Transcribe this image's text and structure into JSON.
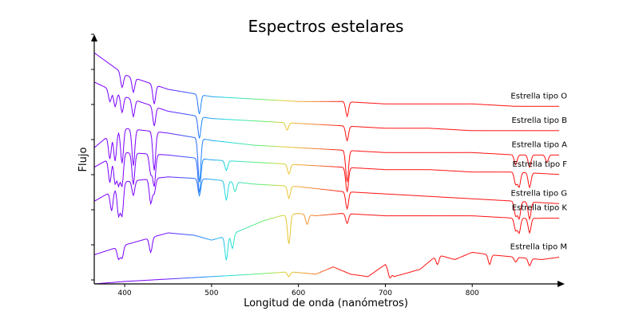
{
  "chart_data": {
    "type": "line",
    "title": "Espectros estelares",
    "xlabel": "Longitud de onda (nanómetros)",
    "ylabel": "Flujo",
    "xlim": [
      365,
      900
    ],
    "x_ticks": [
      400,
      500,
      600,
      700,
      800
    ],
    "y_ticks_count": 8,
    "grid": false,
    "legend": "none",
    "color_scheme": "rainbow-by-wavelength",
    "colors": {
      "violet": "#7a00ff",
      "blue": "#1f77ff",
      "cyan": "#22dddd",
      "green": "#66ee66",
      "yellow": "#e8d030",
      "orange": "#f08030",
      "red": "#ff1010"
    },
    "series": [
      {
        "name": "Estrella tipo O",
        "points": [
          [
            365,
            0.95
          ],
          [
            400,
            0.86
          ],
          [
            450,
            0.8
          ],
          [
            500,
            0.77
          ],
          [
            550,
            0.76
          ],
          [
            600,
            0.75
          ],
          [
            650,
            0.75
          ],
          [
            700,
            0.74
          ],
          [
            750,
            0.74
          ],
          [
            800,
            0.74
          ],
          [
            850,
            0.73
          ],
          [
            900,
            0.73
          ]
        ],
        "absorption_lines": [
          [
            397,
            0.06
          ],
          [
            410,
            0.06
          ],
          [
            434,
            0.08
          ],
          [
            486,
            0.08
          ],
          [
            656,
            0.06
          ]
        ]
      },
      {
        "name": "Estrella tipo B",
        "points": [
          [
            365,
            0.83
          ],
          [
            400,
            0.77
          ],
          [
            450,
            0.71
          ],
          [
            500,
            0.68
          ],
          [
            550,
            0.67
          ],
          [
            600,
            0.66
          ],
          [
            650,
            0.65
          ],
          [
            700,
            0.64
          ],
          [
            750,
            0.64
          ],
          [
            800,
            0.63
          ],
          [
            850,
            0.63
          ],
          [
            900,
            0.63
          ]
        ],
        "absorption_lines": [
          [
            383,
            0.05
          ],
          [
            389,
            0.06
          ],
          [
            397,
            0.07
          ],
          [
            410,
            0.07
          ],
          [
            434,
            0.08
          ],
          [
            486,
            0.09
          ],
          [
            587,
            0.03
          ],
          [
            656,
            0.06
          ]
        ]
      },
      {
        "name": "Estrella tipo A",
        "points": [
          [
            365,
            0.56
          ],
          [
            385,
            0.62
          ],
          [
            400,
            0.64
          ],
          [
            450,
            0.62
          ],
          [
            500,
            0.59
          ],
          [
            550,
            0.57
          ],
          [
            600,
            0.56
          ],
          [
            650,
            0.55
          ],
          [
            700,
            0.54
          ],
          [
            750,
            0.54
          ],
          [
            800,
            0.54
          ],
          [
            850,
            0.53
          ],
          [
            900,
            0.53
          ]
        ],
        "absorption_lines": [
          [
            383,
            0.1
          ],
          [
            389,
            0.12
          ],
          [
            397,
            0.14
          ],
          [
            410,
            0.15
          ],
          [
            434,
            0.16
          ],
          [
            486,
            0.18
          ],
          [
            656,
            0.13
          ],
          [
            866,
            0.05
          ],
          [
            850,
            0.04
          ],
          [
            886,
            0.03
          ]
        ]
      },
      {
        "name": "Estrella tipo F",
        "points": [
          [
            365,
            0.48
          ],
          [
            385,
            0.52
          ],
          [
            400,
            0.54
          ],
          [
            450,
            0.53
          ],
          [
            500,
            0.51
          ],
          [
            550,
            0.5
          ],
          [
            600,
            0.49
          ],
          [
            650,
            0.48
          ],
          [
            700,
            0.47
          ],
          [
            750,
            0.47
          ],
          [
            800,
            0.46
          ],
          [
            850,
            0.46
          ],
          [
            900,
            0.45
          ]
        ],
        "absorption_lines": [
          [
            383,
            0.1
          ],
          [
            389,
            0.11
          ],
          [
            393,
            0.12
          ],
          [
            397,
            0.13
          ],
          [
            410,
            0.13
          ],
          [
            430,
            0.08
          ],
          [
            434,
            0.13
          ],
          [
            486,
            0.14
          ],
          [
            517,
            0.04
          ],
          [
            589,
            0.04
          ],
          [
            656,
            0.1
          ],
          [
            850,
            0.05
          ],
          [
            854,
            0.06
          ],
          [
            866,
            0.06
          ]
        ]
      },
      {
        "name": "Estrella tipo G",
        "points": [
          [
            365,
            0.34
          ],
          [
            385,
            0.38
          ],
          [
            400,
            0.42
          ],
          [
            450,
            0.44
          ],
          [
            500,
            0.43
          ],
          [
            550,
            0.41
          ],
          [
            600,
            0.4
          ],
          [
            650,
            0.38
          ],
          [
            700,
            0.37
          ],
          [
            750,
            0.36
          ],
          [
            800,
            0.35
          ],
          [
            850,
            0.34
          ],
          [
            900,
            0.33
          ]
        ],
        "absorption_lines": [
          [
            385,
            0.08
          ],
          [
            393,
            0.12
          ],
          [
            397,
            0.13
          ],
          [
            410,
            0.06
          ],
          [
            430,
            0.1
          ],
          [
            434,
            0.06
          ],
          [
            486,
            0.07
          ],
          [
            517,
            0.08
          ],
          [
            527,
            0.04
          ],
          [
            589,
            0.05
          ],
          [
            656,
            0.07
          ],
          [
            850,
            0.06
          ],
          [
            854,
            0.07
          ],
          [
            866,
            0.07
          ]
        ]
      },
      {
        "name": "Estrella tipo K",
        "points": [
          [
            365,
            0.12
          ],
          [
            400,
            0.16
          ],
          [
            450,
            0.21
          ],
          [
            480,
            0.2
          ],
          [
            500,
            0.18
          ],
          [
            520,
            0.2
          ],
          [
            540,
            0.23
          ],
          [
            560,
            0.26
          ],
          [
            580,
            0.28
          ],
          [
            600,
            0.29
          ],
          [
            620,
            0.28
          ],
          [
            650,
            0.29
          ],
          [
            700,
            0.28
          ],
          [
            750,
            0.28
          ],
          [
            800,
            0.28
          ],
          [
            850,
            0.27
          ],
          [
            900,
            0.27
          ]
        ],
        "absorption_lines": [
          [
            393,
            0.05
          ],
          [
            397,
            0.05
          ],
          [
            430,
            0.06
          ],
          [
            517,
            0.1
          ],
          [
            524,
            0.06
          ],
          [
            589,
            0.12
          ],
          [
            610,
            0.04
          ],
          [
            656,
            0.04
          ],
          [
            850,
            0.05
          ],
          [
            854,
            0.06
          ],
          [
            866,
            0.06
          ]
        ]
      },
      {
        "name": "Estrella tipo M",
        "points": [
          [
            365,
            0.0
          ],
          [
            400,
            0.01
          ],
          [
            450,
            0.02
          ],
          [
            500,
            0.03
          ],
          [
            550,
            0.04
          ],
          [
            590,
            0.05
          ],
          [
            620,
            0.04
          ],
          [
            640,
            0.07
          ],
          [
            660,
            0.04
          ],
          [
            680,
            0.03
          ],
          [
            700,
            0.08
          ],
          [
            710,
            0.03
          ],
          [
            740,
            0.06
          ],
          [
            760,
            0.12
          ],
          [
            780,
            0.1
          ],
          [
            800,
            0.13
          ],
          [
            820,
            0.12
          ],
          [
            850,
            0.11
          ],
          [
            880,
            0.1
          ],
          [
            900,
            0.11
          ]
        ],
        "absorption_lines": [
          [
            589,
            0.02
          ],
          [
            705,
            0.03
          ],
          [
            760,
            0.04
          ],
          [
            820,
            0.04
          ],
          [
            850,
            0.02
          ],
          [
            866,
            0.03
          ]
        ]
      }
    ]
  }
}
